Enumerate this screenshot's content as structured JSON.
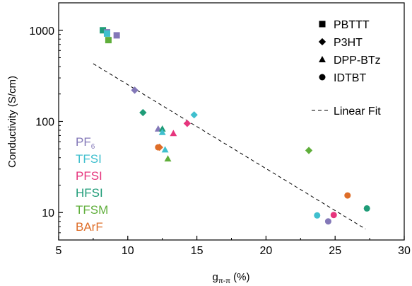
{
  "chart_data": {
    "type": "scatter",
    "title": "",
    "xlabel_main": "g",
    "xlabel_sub": "π-π",
    "xlabel_unit": " (%)",
    "ylabel": "Conductivity (S/cm)",
    "xlim": [
      5,
      30
    ],
    "ylim": [
      5,
      2000
    ],
    "yscale": "log",
    "x_ticks": [
      5,
      10,
      15,
      20,
      25,
      30
    ],
    "y_ticks": [
      {
        "value": 10,
        "label": "10"
      },
      {
        "value": 100,
        "label": "100"
      },
      {
        "value": 1000,
        "label": "1000"
      }
    ],
    "grid": false,
    "legend_position": "top-right",
    "polymers": [
      {
        "name": "PBTTT",
        "marker": "square"
      },
      {
        "name": "P3HT",
        "marker": "diamond"
      },
      {
        "name": "DPP-BTz",
        "marker": "triangle"
      },
      {
        "name": "IDTBT",
        "marker": "circle"
      }
    ],
    "fit": {
      "name": "Linear Fit",
      "x": [
        7.5,
        27.2
      ],
      "y": [
        430,
        6.6
      ]
    },
    "anions": [
      {
        "name": "PF",
        "sub": "6",
        "color": "#8378b8"
      },
      {
        "name": "TFSI",
        "sub": "",
        "color": "#3fbfce"
      },
      {
        "name": "PFSI",
        "sub": "",
        "color": "#e6357d"
      },
      {
        "name": "HFSI",
        "sub": "",
        "color": "#1f9c78"
      },
      {
        "name": "TFSM",
        "sub": "",
        "color": "#5fae3a"
      },
      {
        "name": "BArF",
        "sub": "",
        "color": "#de6d28"
      }
    ],
    "points": [
      {
        "polymer": "PBTTT",
        "anion": "HFSI",
        "x": 8.2,
        "y": 1000
      },
      {
        "polymer": "PBTTT",
        "anion": "PF",
        "x": 8.5,
        "y": 950
      },
      {
        "polymer": "PBTTT",
        "anion": "TFSI",
        "x": 8.5,
        "y": 920
      },
      {
        "polymer": "PBTTT",
        "anion": "PF",
        "x": 9.2,
        "y": 880
      },
      {
        "polymer": "PBTTT",
        "anion": "TFSM",
        "x": 8.6,
        "y": 780
      },
      {
        "polymer": "P3HT",
        "anion": "PF",
        "x": 10.5,
        "y": 220
      },
      {
        "polymer": "P3HT",
        "anion": "HFSI",
        "x": 11.1,
        "y": 125
      },
      {
        "polymer": "P3HT",
        "anion": "TFSI",
        "x": 14.8,
        "y": 118
      },
      {
        "polymer": "P3HT",
        "anion": "PFSI",
        "x": 14.3,
        "y": 95
      },
      {
        "polymer": "P3HT",
        "anion": "TFSM",
        "x": 23.1,
        "y": 48
      },
      {
        "polymer": "P3HT",
        "anion": "BArF",
        "x": 12.3,
        "y": 52
      },
      {
        "polymer": "DPP-BTz",
        "anion": "PF",
        "x": 12.2,
        "y": 83
      },
      {
        "polymer": "DPP-BTz",
        "anion": "HFSI",
        "x": 12.5,
        "y": 83
      },
      {
        "polymer": "DPP-BTz",
        "anion": "TFSI",
        "x": 12.5,
        "y": 76
      },
      {
        "polymer": "DPP-BTz",
        "anion": "PFSI",
        "x": 13.3,
        "y": 74
      },
      {
        "polymer": "DPP-BTz",
        "anion": "TFSI",
        "x": 12.7,
        "y": 49
      },
      {
        "polymer": "DPP-BTz",
        "anion": "TFSM",
        "x": 12.9,
        "y": 39
      },
      {
        "polymer": "IDTBT",
        "anion": "BArF",
        "x": 12.2,
        "y": 52
      },
      {
        "polymer": "IDTBT",
        "anion": "TFSI",
        "x": 23.7,
        "y": 9.3
      },
      {
        "polymer": "IDTBT",
        "anion": "PF",
        "x": 24.5,
        "y": 8.0
      },
      {
        "polymer": "IDTBT",
        "anion": "PFSI",
        "x": 24.9,
        "y": 9.4
      },
      {
        "polymer": "IDTBT",
        "anion": "BArF",
        "x": 25.9,
        "y": 15.4
      },
      {
        "polymer": "IDTBT",
        "anion": "HFSI",
        "x": 27.3,
        "y": 11.1
      }
    ]
  }
}
